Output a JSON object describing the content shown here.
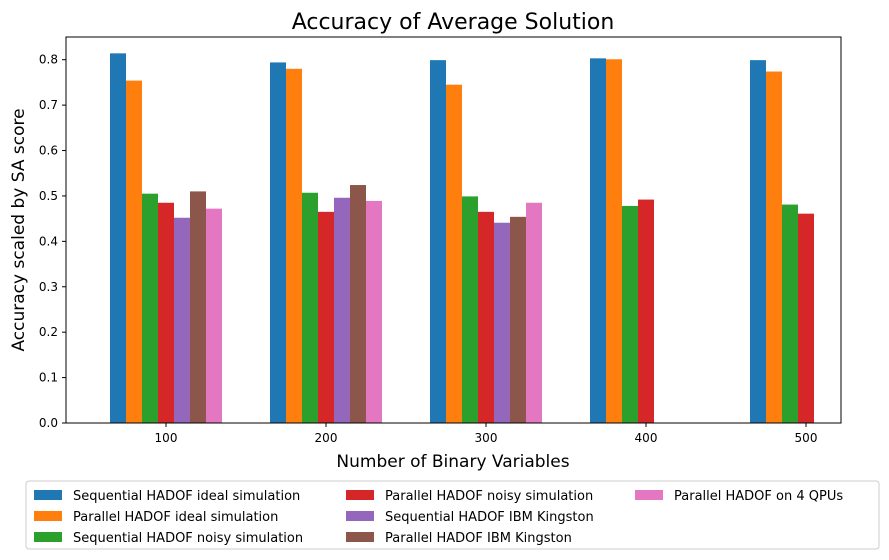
{
  "chart_data": {
    "type": "bar",
    "title": "Accuracy of Average Solution",
    "xlabel": "Number of Binary Variables",
    "ylabel": "Accuracy scaled by SA score",
    "categories": [
      "100",
      "200",
      "300",
      "400",
      "500"
    ],
    "ylim": [
      0,
      0.85
    ],
    "yticks": [
      "0.0",
      "0.1",
      "0.2",
      "0.3",
      "0.4",
      "0.5",
      "0.6",
      "0.7",
      "0.8"
    ],
    "grid": false,
    "legend_position": "bottom",
    "series": [
      {
        "name": "Sequential HADOF ideal simulation",
        "color": "#1f77b4",
        "values": [
          0.814,
          0.794,
          0.799,
          0.803,
          0.799
        ]
      },
      {
        "name": "Parallel HADOF ideal simulation",
        "color": "#ff7f0e",
        "values": [
          0.754,
          0.78,
          0.745,
          0.801,
          0.774
        ]
      },
      {
        "name": "Sequential HADOF noisy simulation",
        "color": "#2ca02c",
        "values": [
          0.505,
          0.507,
          0.499,
          0.478,
          0.481
        ]
      },
      {
        "name": "Parallel HADOF noisy simulation",
        "color": "#d62728",
        "values": [
          0.485,
          0.465,
          0.465,
          0.492,
          0.461
        ]
      },
      {
        "name": "Sequential HADOF IBM Kingston",
        "color": "#9467bd",
        "values": [
          0.452,
          0.496,
          0.441,
          null,
          null
        ]
      },
      {
        "name": "Parallel HADOF IBM Kingston",
        "color": "#8c564b",
        "values": [
          0.51,
          0.524,
          0.454,
          null,
          null
        ]
      },
      {
        "name": "Parallel HADOF on 4 QPUs",
        "color": "#e377c2",
        "values": [
          0.472,
          0.489,
          0.485,
          null,
          null
        ]
      }
    ]
  }
}
